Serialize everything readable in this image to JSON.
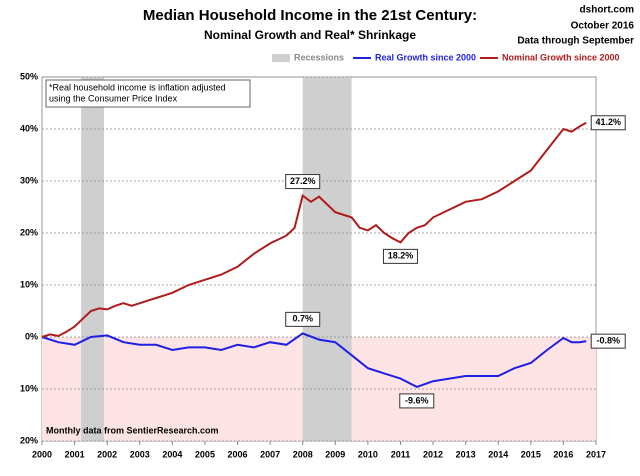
{
  "chart_data": {
    "type": "line",
    "title": "Median Household Income in the 21st Century:",
    "subtitle": "Nominal  Growth and Real* Shrinkage",
    "source_lines": [
      "dshort.com",
      "October 2016",
      "Data through September"
    ],
    "note": [
      "*Real household income is inflation adjusted",
      "using the Consumer Price Index"
    ],
    "footer": "Monthly data from SentierResearch.com",
    "recession_label": "Recessions",
    "recessions": [
      [
        2001.2,
        2001.9
      ],
      [
        2008.0,
        2009.5
      ]
    ],
    "xlim": [
      2000,
      2017
    ],
    "xticks": [
      2000,
      2001,
      2002,
      2003,
      2004,
      2005,
      2006,
      2007,
      2008,
      2009,
      2010,
      2011,
      2012,
      2013,
      2014,
      2015,
      2016,
      2017
    ],
    "ylim": [
      -20,
      50
    ],
    "yticks": [
      {
        "value": -20,
        "label": "20%"
      },
      {
        "value": -10,
        "label": "10%"
      },
      {
        "value": 0,
        "label": "0%"
      },
      {
        "value": 10,
        "label": "10%"
      },
      {
        "value": 20,
        "label": "20%"
      },
      {
        "value": 30,
        "label": "30%"
      },
      {
        "value": 40,
        "label": "40%"
      },
      {
        "value": 50,
        "label": "50%"
      }
    ],
    "grid": true,
    "negative_fill": "#fde3e3",
    "series": [
      {
        "name": "Real Growth since 2000",
        "color": "#1f1fe6",
        "x": [
          2000,
          2000.5,
          2001,
          2001.5,
          2002,
          2002.5,
          2003,
          2003.5,
          2004,
          2004.5,
          2005,
          2005.5,
          2006,
          2006.5,
          2007,
          2007.5,
          2008,
          2008.5,
          2009,
          2009.5,
          2010,
          2010.5,
          2011,
          2011.5,
          2012,
          2012.5,
          2013,
          2013.5,
          2014,
          2014.5,
          2015,
          2015.5,
          2016,
          2016.25,
          2016.5,
          2016.7
        ],
        "values": [
          0,
          -1,
          -1.5,
          0,
          0.3,
          -1,
          -1.5,
          -1.5,
          -2.5,
          -2,
          -2,
          -2.5,
          -1.5,
          -2,
          -1,
          -1.5,
          0.7,
          -0.5,
          -1,
          -3.5,
          -6,
          -7,
          -8,
          -9.6,
          -8.5,
          -8,
          -7.5,
          -7.5,
          -7.5,
          -6,
          -5,
          -2.5,
          -0.2,
          -1,
          -1,
          -0.8
        ]
      },
      {
        "name": "Nominal Growth since 2000",
        "color": "#b01c1c",
        "x": [
          2000,
          2000.25,
          2000.5,
          2000.75,
          2001,
          2001.25,
          2001.5,
          2001.75,
          2002,
          2002.25,
          2002.5,
          2002.75,
          2003,
          2003.25,
          2003.5,
          2003.75,
          2004,
          2004.5,
          2005,
          2005.5,
          2006,
          2006.5,
          2007,
          2007.5,
          2007.75,
          2008,
          2008.25,
          2008.5,
          2008.75,
          2009,
          2009.5,
          2009.75,
          2010,
          2010.25,
          2010.5,
          2010.75,
          2011,
          2011.25,
          2011.5,
          2011.75,
          2012,
          2012.5,
          2013,
          2013.5,
          2014,
          2014.5,
          2015,
          2015.5,
          2016,
          2016.25,
          2016.5,
          2016.7
        ],
        "values": [
          0,
          0.5,
          0.2,
          1,
          2,
          3.5,
          5,
          5.5,
          5.3,
          6,
          6.5,
          6,
          6.5,
          7,
          7.5,
          8,
          8.5,
          10,
          11,
          12,
          13.5,
          16,
          18,
          19.5,
          21,
          27.2,
          26,
          27,
          25.5,
          24,
          23,
          21,
          20.5,
          21.5,
          20,
          19,
          18.2,
          20,
          21,
          21.5,
          23,
          24.5,
          26,
          26.5,
          28,
          30,
          32,
          36,
          40,
          39.5,
          40.5,
          41.2
        ]
      }
    ],
    "annotations": [
      {
        "x": 2008.0,
        "value": 27.2,
        "label": "27.2%",
        "side": "above"
      },
      {
        "x": 2011.0,
        "value": 18.2,
        "label": "18.2%",
        "side": "below"
      },
      {
        "x": 2016.7,
        "value": 41.2,
        "label": "41.2%",
        "side": "right"
      },
      {
        "x": 2008.0,
        "value": 0.7,
        "label": "0.7%",
        "side": "above"
      },
      {
        "x": 2011.5,
        "value": -9.6,
        "label": "-9.6%",
        "side": "below"
      },
      {
        "x": 2016.7,
        "value": -0.8,
        "label": "-0.8%",
        "side": "right"
      }
    ]
  }
}
